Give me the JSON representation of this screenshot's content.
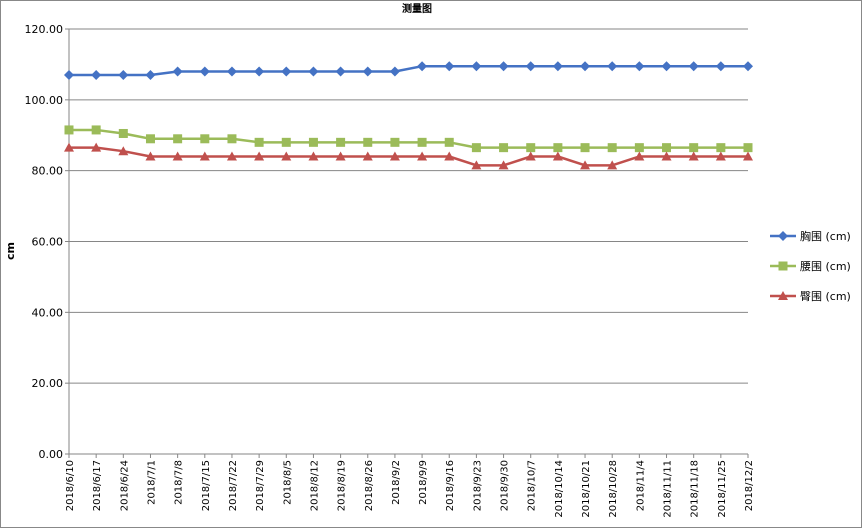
{
  "chart_data": {
    "type": "line",
    "title": "测量图",
    "xlabel": "",
    "ylabel": "cm",
    "ylim": [
      0,
      120
    ],
    "yticks": [
      "0.00",
      "20.00",
      "40.00",
      "60.00",
      "80.00",
      "100.00",
      "120.00"
    ],
    "grid": true,
    "legend": "right",
    "categories": [
      "2018/6/10",
      "2018/6/17",
      "2018/6/24",
      "2018/7/1",
      "2018/7/8",
      "2018/7/15",
      "2018/7/22",
      "2018/7/29",
      "2018/8/5",
      "2018/8/12",
      "2018/8/19",
      "2018/8/26",
      "2018/9/2",
      "2018/9/9",
      "2018/9/16",
      "2018/9/23",
      "2018/9/30",
      "2018/10/7",
      "2018/10/14",
      "2018/10/21",
      "2018/10/28",
      "2018/11/4",
      "2018/11/11",
      "2018/11/18",
      "2018/11/25",
      "2018/12/2"
    ],
    "series": [
      {
        "name": "胸围 (cm)",
        "color": "#4472C4",
        "marker": "diamond",
        "values": [
          107,
          107,
          107,
          107,
          108,
          108,
          108,
          108,
          108,
          108,
          108,
          108,
          108,
          109.5,
          109.5,
          109.5,
          109.5,
          109.5,
          109.5,
          109.5,
          109.5,
          109.5,
          109.5,
          109.5,
          109.5,
          109.5
        ]
      },
      {
        "name": "腰围 (cm)",
        "color": "#9BBB59",
        "marker": "square",
        "values": [
          91.5,
          91.5,
          90.5,
          89,
          89,
          89,
          89,
          88,
          88,
          88,
          88,
          88,
          88,
          88,
          88,
          86.5,
          86.5,
          86.5,
          86.5,
          86.5,
          86.5,
          86.5,
          86.5,
          86.5,
          86.5,
          86.5
        ]
      },
      {
        "name": "臀围 (cm)",
        "color": "#C0504D",
        "marker": "triangle",
        "values": [
          86.5,
          86.5,
          85.5,
          84,
          84,
          84,
          84,
          84,
          84,
          84,
          84,
          84,
          84,
          84,
          84,
          81.5,
          81.5,
          84,
          84,
          81.5,
          81.5,
          84,
          84,
          84,
          84,
          84
        ]
      }
    ]
  }
}
